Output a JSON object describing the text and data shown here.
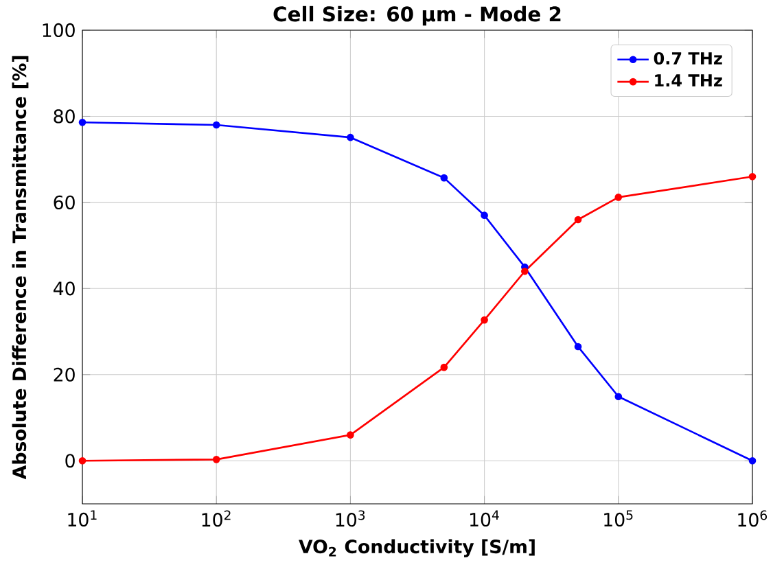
{
  "chart_data": {
    "type": "line",
    "title": "Cell Size: 60 µm - Mode 2",
    "xlabel": "VO$_{2}$ Conductivity [S/m]",
    "ylabel": "Absolute Difference in Transmittance [%]",
    "log": "x",
    "x": [
      10,
      100,
      1000,
      5000,
      10000,
      20000,
      50000,
      100000,
      1000000
    ],
    "series": [
      {
        "name": "0.7 THz",
        "color": "#0000ff",
        "values": [
          78.6,
          78,
          75.1,
          65.7,
          57,
          45,
          26.5,
          14.9,
          0
        ]
      },
      {
        "name": "1.4 THz",
        "color": "#ff0000",
        "values": [
          0,
          0.3,
          6,
          21.7,
          32.7,
          44,
          56,
          61.2,
          66
        ]
      }
    ],
    "xlim": [
      10,
      1000000
    ],
    "xticks": [
      {
        "value": 10,
        "label": "10$^{1}$"
      },
      {
        "value": 100,
        "label": "10$^{2}$"
      },
      {
        "value": 1000,
        "label": "10$^{3}$"
      },
      {
        "value": 10000,
        "label": "10$^{4}$"
      },
      {
        "value": 100000,
        "label": "10$^{5}$"
      },
      {
        "value": 1000000,
        "label": "10$^{6}$"
      }
    ],
    "ylim": [
      -10,
      100
    ],
    "yticks": [
      0,
      20,
      40,
      60,
      80,
      100
    ],
    "grid": true,
    "legend": "top right",
    "marker": "circle",
    "line_style": "solid"
  }
}
